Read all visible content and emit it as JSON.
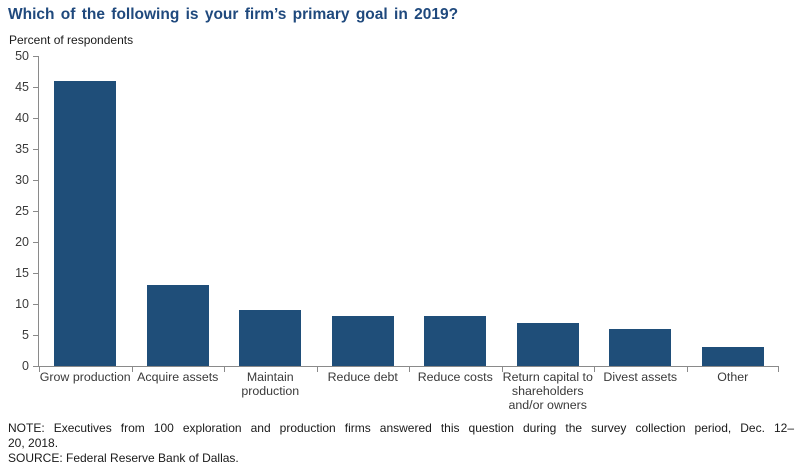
{
  "title": "Which of the following is your firm’s primary goal in 2019?",
  "subtitle": "Percent of respondents",
  "chart_data": {
    "type": "bar",
    "title": "Which of the following is your firm’s primary goal in 2019?",
    "value_axis_caption": "Percent of respondents",
    "categories": [
      "Grow production",
      "Acquire assets",
      "Maintain production",
      "Reduce debt",
      "Reduce costs",
      "Return capital to shareholders and/or owners",
      "Divest assets",
      "Other"
    ],
    "values": [
      46,
      13,
      9,
      8,
      8,
      7,
      6,
      3
    ],
    "xlabel": "",
    "ylabel": "",
    "ylim": [
      0,
      50
    ],
    "yticks": [
      0,
      5,
      10,
      15,
      20,
      25,
      30,
      35,
      40,
      45,
      50
    ],
    "grid": false,
    "legend": "none",
    "bar_color": "#1F4E79",
    "axis_color": "#8A8A8A"
  },
  "note": {
    "lines": [
      "NOTE: Executives from 100 exploration and production firms answered this question during the survey collection period, Dec. 12–",
      "20, 2018."
    ]
  },
  "source": "SOURCE: Federal Reserve Bank of Dallas.",
  "colors": {
    "title_blue": "#1F497D",
    "bar_blue": "#1F4E79",
    "axis_gray": "#8A8A8A",
    "tick_text": "#3A3A3A",
    "note_text": "#1A1A1A"
  }
}
